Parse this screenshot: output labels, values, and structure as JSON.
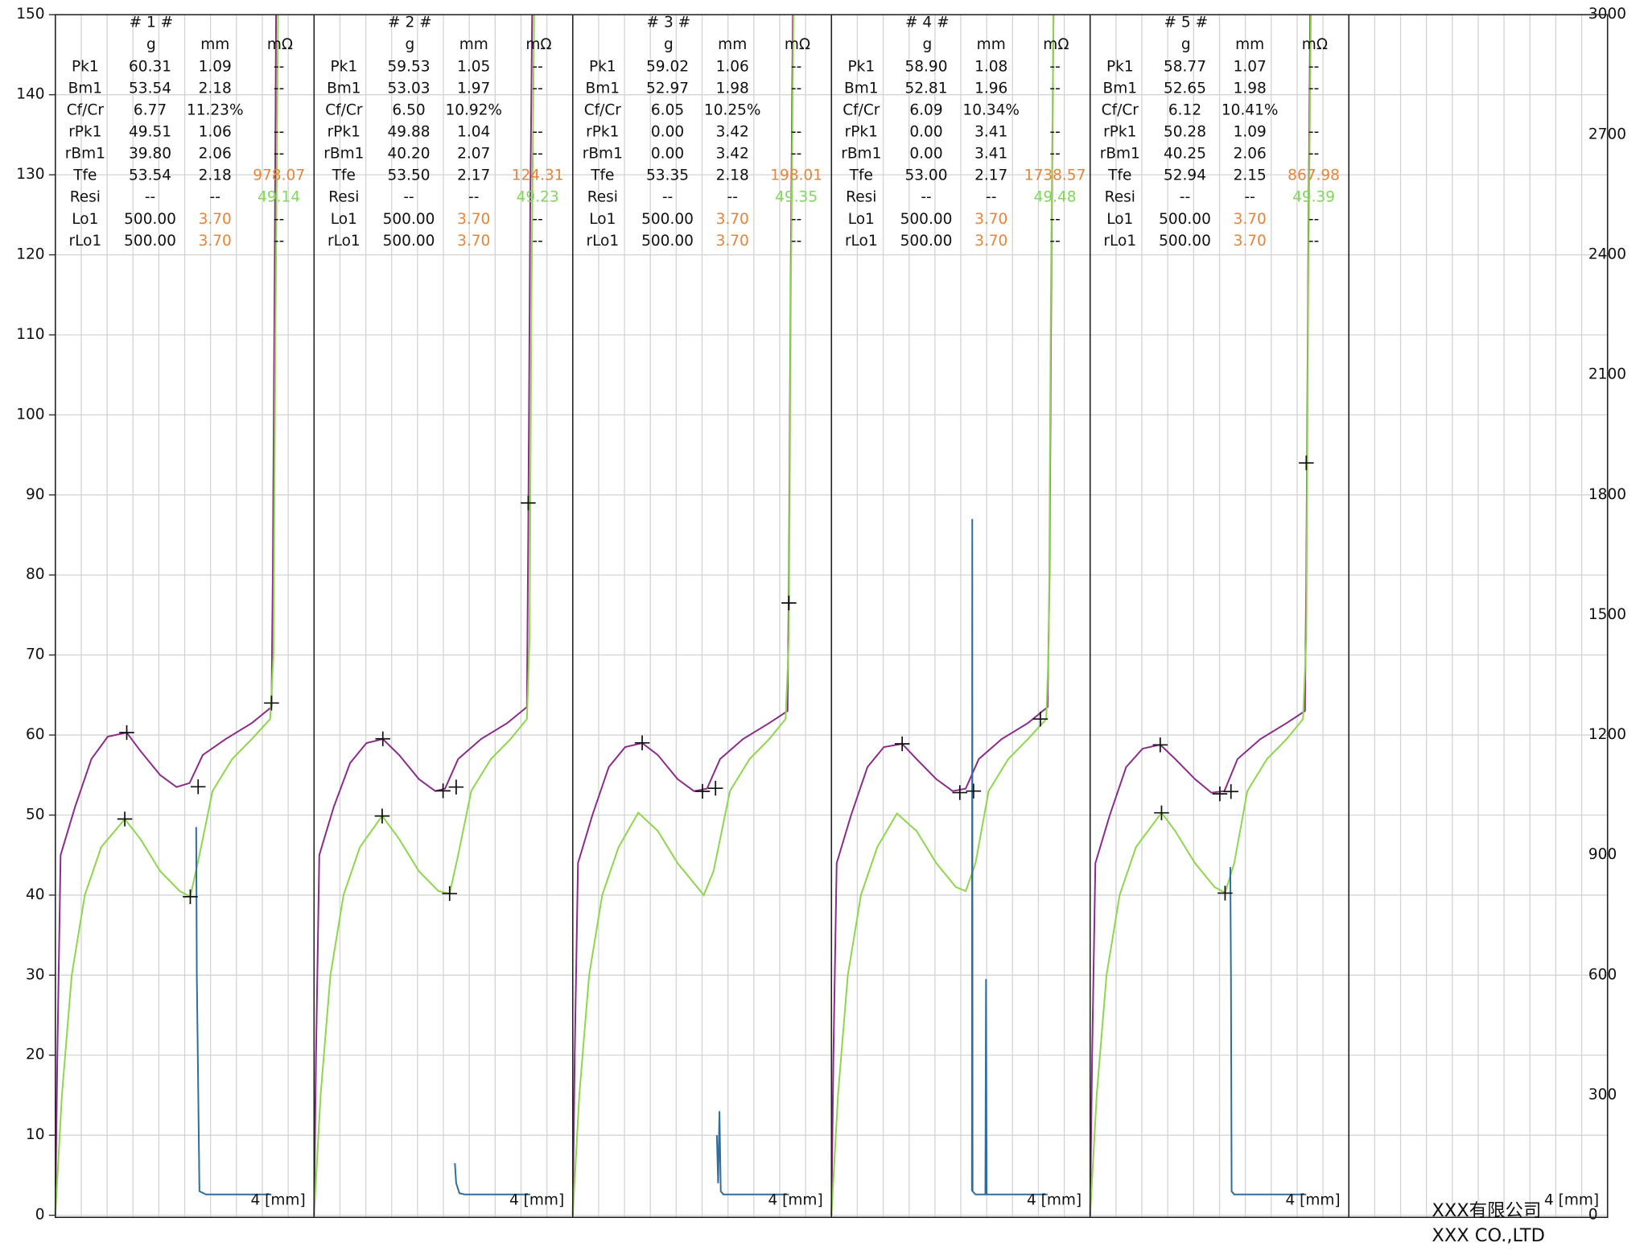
{
  "chart_data": {
    "type": "line",
    "ylim": [
      0,
      150
    ],
    "yticks": [
      0,
      10,
      20,
      30,
      40,
      50,
      60,
      70,
      80,
      90,
      100,
      110,
      120,
      130,
      140,
      150
    ],
    "y2lim": [
      0,
      3000
    ],
    "y2ticks": [
      0,
      300,
      600,
      900,
      1200,
      1500,
      1800,
      2100,
      2400,
      2700,
      3000
    ],
    "xlim": [
      0,
      3.95
    ],
    "grid": true,
    "panels": [
      {
        "title": "# 1 #",
        "header": [
          "g",
          "mm",
          "mΩ"
        ],
        "rows": [
          [
            "Pk1",
            "60.31",
            "1.09",
            "--"
          ],
          [
            "Bm1",
            "53.54",
            "2.18",
            "--"
          ],
          [
            "Cf/Cr",
            "6.77",
            "11.23%"
          ],
          [
            "rPk1",
            "49.51",
            "1.06",
            "--"
          ],
          [
            "rBm1",
            "39.80",
            "2.06",
            "--"
          ],
          [
            "Tfe",
            "53.54",
            "2.18",
            "978.07"
          ],
          [
            "Resi",
            "--",
            "--",
            "49.14"
          ],
          [
            "Lo1",
            "500.00",
            "3.70",
            "--"
          ],
          [
            "rLo1",
            "500.00",
            "3.70",
            "--"
          ]
        ],
        "x_label": "4 [mm]",
        "series": [
          {
            "color": "#8b2a8b",
            "x": [
              0,
              0.03,
              0.08,
              0.3,
              0.55,
              0.8,
              1.09,
              1.3,
              1.6,
              1.85,
              2.05,
              2.25,
              2.6,
              3.0,
              3.3,
              3.32,
              3.35,
              3.37
            ],
            "values": [
              0,
              20,
              45,
              51,
              57,
              59.8,
              60.3,
              58,
              55,
              53.5,
              54,
              57.5,
              59.5,
              61.5,
              63.5,
              80,
              120,
              150
            ]
          },
          {
            "color": "#8ed64a",
            "x": [
              0,
              0.1,
              0.25,
              0.45,
              0.7,
              1.06,
              1.3,
              1.6,
              1.9,
              2.06,
              2.2,
              2.4,
              2.7,
              3.0,
              3.28,
              3.33,
              3.36,
              3.4
            ],
            "values": [
              0,
              15,
              30,
              40,
              46,
              49.5,
              47,
              43,
              40.5,
              39.8,
              45,
              53,
              57,
              59.5,
              62,
              70,
              110,
              150
            ]
          },
          {
            "color": "#2e6e9e",
            "axis": "y2",
            "x": [
              2.15,
              2.16,
              2.2,
              2.3,
              3.3
            ],
            "values": [
              970,
              600,
              60,
              52,
              52
            ]
          }
        ],
        "markers": {
          "x": [
            1.09,
            2.18,
            1.06,
            2.06,
            3.3
          ],
          "y": [
            60.31,
            53.54,
            49.51,
            39.8,
            64
          ]
        }
      },
      {
        "title": "# 2 #",
        "header": [
          "g",
          "mm",
          "mΩ"
        ],
        "rows": [
          [
            "Pk1",
            "59.53",
            "1.05",
            "--"
          ],
          [
            "Bm1",
            "53.03",
            "1.97",
            "--"
          ],
          [
            "Cf/Cr",
            "6.50",
            "10.92%"
          ],
          [
            "rPk1",
            "49.88",
            "1.04",
            "--"
          ],
          [
            "rBm1",
            "40.20",
            "2.07",
            "--"
          ],
          [
            "Tfe",
            "53.50",
            "2.17",
            "124.31"
          ],
          [
            "Resi",
            "--",
            "--",
            "49.23"
          ],
          [
            "Lo1",
            "500.00",
            "3.70",
            "--"
          ],
          [
            "rLo1",
            "500.00",
            "3.70",
            "--"
          ]
        ],
        "x_label": "4 [mm]",
        "series": [
          {
            "color": "#8b2a8b",
            "x": [
              0,
              0.03,
              0.08,
              0.3,
              0.55,
              0.8,
              1.05,
              1.3,
              1.6,
              1.85,
              2.0,
              2.2,
              2.55,
              2.95,
              3.25,
              3.27,
              3.3,
              3.33
            ],
            "values": [
              0,
              20,
              45,
              51,
              56.5,
              59,
              59.5,
              57.5,
              54.5,
              53,
              53.3,
              57,
              59.5,
              61.5,
              63.5,
              85,
              125,
              150
            ]
          },
          {
            "color": "#8ed64a",
            "x": [
              0,
              0.1,
              0.25,
              0.45,
              0.7,
              1.04,
              1.3,
              1.6,
              1.9,
              2.07,
              2.2,
              2.4,
              2.7,
              3.0,
              3.25,
              3.29,
              3.32,
              3.36
            ],
            "values": [
              0,
              15,
              30,
              40,
              46,
              49.9,
              47,
              43,
              40.5,
              40.2,
              45,
              53,
              57,
              59.5,
              62,
              72,
              115,
              150
            ]
          },
          {
            "color": "#2e6e9e",
            "axis": "y2",
            "x": [
              2.15,
              2.17,
              2.22,
              2.3,
              3.3
            ],
            "values": [
              130,
              80,
              55,
              52,
              52
            ]
          }
        ],
        "markers": {
          "x": [
            1.05,
            1.97,
            2.17,
            1.04,
            2.07,
            3.27
          ],
          "y": [
            59.53,
            53.03,
            53.5,
            49.88,
            40.2,
            89
          ]
        }
      },
      {
        "title": "# 3 #",
        "header": [
          "g",
          "mm",
          "mΩ"
        ],
        "rows": [
          [
            "Pk1",
            "59.02",
            "1.06",
            "--"
          ],
          [
            "Bm1",
            "52.97",
            "1.98",
            "--"
          ],
          [
            "Cf/Cr",
            "6.05",
            "10.25%"
          ],
          [
            "rPk1",
            "0.00",
            "3.42",
            "--"
          ],
          [
            "rBm1",
            "0.00",
            "3.42",
            "--"
          ],
          [
            "Tfe",
            "53.35",
            "2.18",
            "198.01"
          ],
          [
            "Resi",
            "--",
            "--",
            "49.35"
          ],
          [
            "Lo1",
            "500.00",
            "3.70",
            "--"
          ],
          [
            "rLo1",
            "500.00",
            "3.70",
            "--"
          ]
        ],
        "x_label": "4 [mm]",
        "series": [
          {
            "color": "#8b2a8b",
            "x": [
              0,
              0.03,
              0.08,
              0.3,
              0.55,
              0.8,
              1.06,
              1.3,
              1.6,
              1.85,
              2.05,
              2.25,
              2.6,
              3.0,
              3.28,
              3.3,
              3.33,
              3.36
            ],
            "values": [
              0,
              20,
              44,
              50,
              56,
              58.5,
              59,
              57.5,
              54.5,
              53,
              53.3,
              57,
              59.5,
              61.5,
              63,
              80,
              120,
              150
            ]
          },
          {
            "color": "#8ed64a",
            "x": [
              0,
              0.1,
              0.25,
              0.45,
              0.7,
              1.0,
              1.3,
              1.6,
              1.9,
              2.0,
              2.15,
              2.4,
              2.7,
              3.0,
              3.25,
              3.3,
              3.33,
              3.37
            ],
            "values": [
              0,
              15,
              30,
              40,
              46,
              50.3,
              48,
              44,
              41,
              40,
              43,
              53,
              57,
              59.5,
              62,
              72,
              115,
              150
            ]
          },
          {
            "color": "#2e6e9e",
            "axis": "y2",
            "x": [
              2.2,
              2.22,
              2.24,
              2.26,
              2.3,
              3.3
            ],
            "values": [
              200,
              80,
              260,
              60,
              52,
              52
            ]
          }
        ],
        "markers": {
          "x": [
            1.06,
            1.98,
            2.18,
            3.3
          ],
          "y": [
            59.02,
            52.97,
            53.35,
            76.5
          ]
        }
      },
      {
        "title": "# 4 #",
        "header": [
          "g",
          "mm",
          "mΩ"
        ],
        "rows": [
          [
            "Pk1",
            "58.90",
            "1.08",
            "--"
          ],
          [
            "Bm1",
            "52.81",
            "1.96",
            "--"
          ],
          [
            "Cf/Cr",
            "6.09",
            "10.34%"
          ],
          [
            "rPk1",
            "0.00",
            "3.41",
            "--"
          ],
          [
            "rBm1",
            "0.00",
            "3.41",
            "--"
          ],
          [
            "Tfe",
            "53.00",
            "2.17",
            "1738.57"
          ],
          [
            "Resi",
            "--",
            "--",
            "49.48"
          ],
          [
            "Lo1",
            "500.00",
            "3.70",
            "--"
          ],
          [
            "rLo1",
            "500.00",
            "3.70",
            "--"
          ]
        ],
        "x_label": "4 [mm]",
        "series": [
          {
            "color": "#8b2a8b",
            "x": [
              0,
              0.03,
              0.08,
              0.3,
              0.55,
              0.8,
              1.08,
              1.3,
              1.6,
              1.85,
              2.05,
              2.25,
              2.6,
              3.0,
              3.3,
              3.33,
              3.36,
              3.39
            ],
            "values": [
              0,
              20,
              44,
              50,
              56,
              58.5,
              58.9,
              57,
              54.5,
              53,
              53.3,
              57,
              59.5,
              61.5,
              63.5,
              80,
              120,
              150
            ]
          },
          {
            "color": "#8ed64a",
            "x": [
              0,
              0.1,
              0.25,
              0.45,
              0.7,
              1.0,
              1.3,
              1.6,
              1.9,
              2.05,
              2.2,
              2.4,
              2.7,
              3.0,
              3.28,
              3.32,
              3.35,
              3.39
            ],
            "values": [
              0,
              15,
              30,
              40,
              46,
              50.2,
              48,
              44,
              41,
              40.5,
              44,
              53,
              57,
              59.5,
              62,
              72,
              115,
              150
            ]
          },
          {
            "color": "#2e6e9e",
            "axis": "y2",
            "x": [
              2.145,
              2.15,
              2.155,
              2.2,
              2.35,
              2.36,
              2.37,
              2.4,
              3.3
            ],
            "values": [
              60,
              1740,
              60,
              52,
              52,
              590,
              52,
              52,
              52
            ]
          }
        ],
        "markers": {
          "x": [
            1.08,
            1.96,
            2.17,
            3.19
          ],
          "y": [
            58.9,
            52.81,
            53.0,
            62
          ]
        }
      },
      {
        "title": "# 5 #",
        "header": [
          "g",
          "mm",
          "mΩ"
        ],
        "rows": [
          [
            "Pk1",
            "58.77",
            "1.07",
            "--"
          ],
          [
            "Bm1",
            "52.65",
            "1.98",
            "--"
          ],
          [
            "Cf/Cr",
            "6.12",
            "10.41%"
          ],
          [
            "rPk1",
            "50.28",
            "1.09",
            "--"
          ],
          [
            "rBm1",
            "40.25",
            "2.06",
            "--"
          ],
          [
            "Tfe",
            "52.94",
            "2.15",
            "867.98"
          ],
          [
            "Resi",
            "--",
            "--",
            "49.39"
          ],
          [
            "Lo1",
            "500.00",
            "3.70",
            "--"
          ],
          [
            "rLo1",
            "500.00",
            "3.70",
            "--"
          ]
        ],
        "x_label": "4 [mm]",
        "series": [
          {
            "color": "#8b2a8b",
            "x": [
              0,
              0.03,
              0.08,
              0.3,
              0.55,
              0.8,
              1.07,
              1.3,
              1.6,
              1.85,
              2.05,
              2.25,
              2.6,
              3.0,
              3.28,
              3.3,
              3.33,
              3.36
            ],
            "values": [
              0,
              20,
              44,
              50,
              56,
              58.3,
              58.8,
              57,
              54.5,
              52.8,
              53,
              57,
              59.5,
              61.5,
              63,
              80,
              120,
              150
            ]
          },
          {
            "color": "#8ed64a",
            "x": [
              0,
              0.1,
              0.25,
              0.45,
              0.7,
              1.09,
              1.3,
              1.6,
              1.9,
              2.06,
              2.2,
              2.4,
              2.7,
              3.0,
              3.25,
              3.3,
              3.33,
              3.37
            ],
            "values": [
              0,
              15,
              30,
              40,
              46,
              50.3,
              48,
              44,
              41,
              40.3,
              44,
              53,
              57,
              59.5,
              62,
              72,
              115,
              150
            ]
          },
          {
            "color": "#2e6e9e",
            "axis": "y2",
            "x": [
              2.14,
              2.15,
              2.16,
              2.2,
              2.3,
              3.3
            ],
            "values": [
              870,
              600,
              60,
              52,
              52,
              52
            ]
          }
        ],
        "markers": {
          "x": [
            1.07,
            1.98,
            2.15,
            1.09,
            2.06,
            3.3
          ],
          "y": [
            58.77,
            52.65,
            52.94,
            50.28,
            40.25,
            94
          ]
        }
      },
      {
        "x_label": "4 [mm]"
      }
    ]
  },
  "footer": [
    "XXX有限公司",
    "XXX CO.,LTD"
  ]
}
